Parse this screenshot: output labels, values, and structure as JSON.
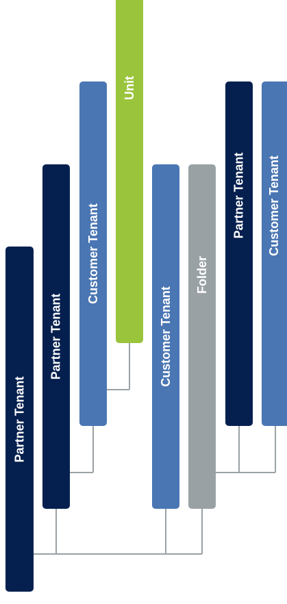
{
  "colors": {
    "partner": "#05204f",
    "customer": "#4a76b3",
    "unit": "#9ac43c",
    "folder": "#9aa1a5",
    "connector": "#9aa1a5"
  },
  "nodes": {
    "partner_root": {
      "label": "Partner Tenant",
      "kind": "partner"
    },
    "partner_child": {
      "label": "Partner Tenant",
      "kind": "partner"
    },
    "customer_a": {
      "label": "Customer Tenant",
      "kind": "customer"
    },
    "unit": {
      "label": "Unit",
      "kind": "unit"
    },
    "customer_b": {
      "label": "Customer Tenant",
      "kind": "customer"
    },
    "folder": {
      "label": "Folder",
      "kind": "folder"
    },
    "partner_folder": {
      "label": "Partner Tenant",
      "kind": "partner"
    },
    "customer_folder": {
      "label": "Customer Tenant",
      "kind": "customer"
    }
  }
}
